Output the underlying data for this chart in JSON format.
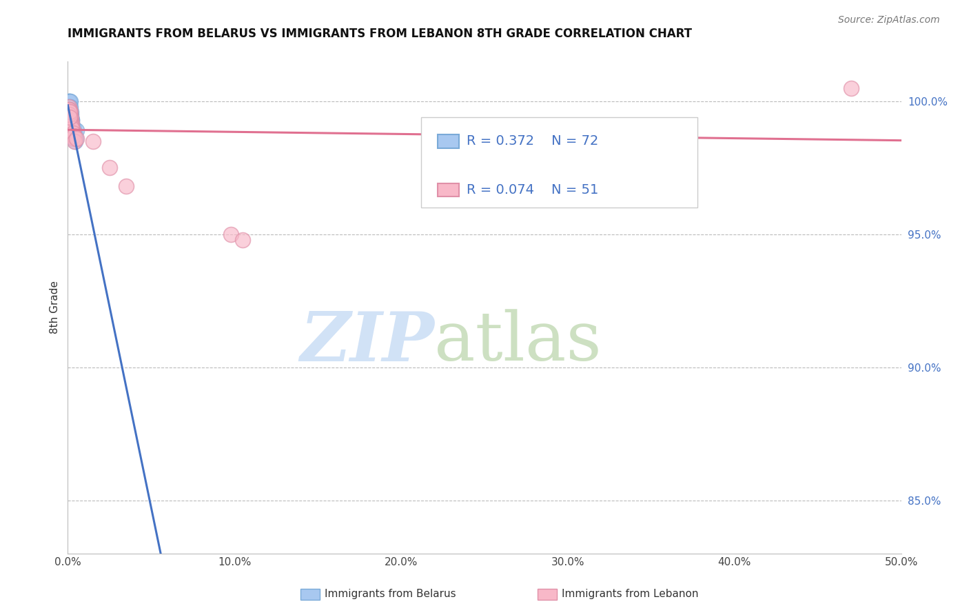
{
  "title": "IMMIGRANTS FROM BELARUS VS IMMIGRANTS FROM LEBANON 8TH GRADE CORRELATION CHART",
  "source": "Source: ZipAtlas.com",
  "ylabel": "8th Grade",
  "xlim": [
    0.0,
    50.0
  ],
  "ylim": [
    83.0,
    101.5
  ],
  "y_ticks": [
    85.0,
    90.0,
    95.0,
    100.0
  ],
  "y_tick_labels": [
    "85.0%",
    "90.0%",
    "95.0%",
    "100.0%"
  ],
  "x_ticks": [
    0.0,
    10.0,
    20.0,
    30.0,
    40.0,
    50.0
  ],
  "legend_r1": "R = 0.372",
  "legend_n1": "N = 72",
  "legend_r2": "R = 0.074",
  "legend_n2": "N = 51",
  "color_blue_fill": "#A8C8F0",
  "color_blue_edge": "#7AAAD8",
  "color_blue_line": "#4472C4",
  "color_pink_fill": "#F8B8C8",
  "color_pink_edge": "#E090A8",
  "color_pink_line": "#E07090",
  "color_text_blue": "#4472C4",
  "color_grid": "#BBBBBB",
  "watermark_zip_color": "#CCDFF5",
  "watermark_atlas_color": "#B8D4A8",
  "belarus_x": [
    0.05,
    0.08,
    0.1,
    0.12,
    0.15,
    0.1,
    0.08,
    0.12,
    0.15,
    0.18,
    0.2,
    0.22,
    0.18,
    0.15,
    0.25,
    0.2,
    0.12,
    0.08,
    0.15,
    0.1,
    0.18,
    0.22,
    0.25,
    0.2,
    0.15,
    0.1,
    0.12,
    0.08,
    0.18,
    0.22,
    0.3,
    0.28,
    0.25,
    0.32,
    0.35,
    0.3,
    0.28,
    0.25,
    0.22,
    0.2,
    0.4,
    0.38,
    0.35,
    0.42,
    0.45,
    0.4,
    0.38,
    0.35,
    0.5,
    0.48,
    0.05,
    0.08,
    0.1,
    0.12,
    0.15,
    0.18,
    0.2,
    0.22,
    0.25,
    0.28,
    0.1,
    0.12,
    0.15,
    0.08,
    0.2,
    0.18,
    0.22,
    0.25,
    0.3,
    0.35,
    0.4,
    0.45
  ],
  "belarus_y": [
    100.0,
    100.0,
    100.0,
    99.8,
    100.0,
    99.5,
    99.7,
    99.5,
    99.3,
    99.5,
    99.2,
    99.3,
    99.6,
    99.8,
    99.0,
    99.4,
    99.5,
    99.7,
    99.1,
    99.6,
    98.8,
    99.0,
    98.8,
    99.2,
    99.4,
    99.6,
    99.3,
    99.5,
    98.9,
    98.7,
    99.0,
    98.8,
    99.1,
    98.6,
    98.7,
    98.9,
    98.8,
    99.2,
    99.3,
    99.4,
    98.7,
    98.8,
    98.9,
    98.6,
    98.5,
    98.7,
    98.8,
    99.0,
    98.9,
    98.6,
    99.8,
    99.7,
    99.6,
    99.5,
    99.4,
    99.3,
    99.2,
    99.1,
    99.0,
    98.9,
    99.5,
    99.3,
    99.1,
    99.7,
    99.0,
    99.2,
    98.9,
    98.7,
    98.8,
    98.6,
    98.7,
    98.6
  ],
  "lebanon_x": [
    0.05,
    0.08,
    0.1,
    0.12,
    0.15,
    0.1,
    0.08,
    0.12,
    0.18,
    0.15,
    0.2,
    0.25,
    0.22,
    0.18,
    0.3,
    0.28,
    0.12,
    0.1,
    0.08,
    0.15,
    0.2,
    0.25,
    0.3,
    0.35,
    0.4,
    0.18,
    0.22,
    0.28,
    0.32,
    0.38,
    0.1,
    0.15,
    0.2,
    0.25,
    0.08,
    0.12,
    0.18,
    0.22,
    0.3,
    0.35,
    1.5,
    2.5,
    3.5,
    9.8,
    10.5,
    0.4,
    0.5,
    0.08,
    0.1,
    0.12,
    47.0
  ],
  "lebanon_y": [
    99.8,
    99.5,
    99.7,
    99.3,
    99.6,
    99.4,
    99.5,
    99.2,
    99.1,
    99.3,
    99.0,
    98.9,
    99.2,
    99.4,
    98.8,
    98.9,
    99.5,
    99.6,
    99.7,
    99.3,
    99.1,
    99.0,
    98.9,
    98.7,
    98.6,
    99.2,
    99.0,
    98.8,
    98.7,
    98.6,
    99.4,
    99.2,
    99.0,
    98.9,
    99.5,
    99.3,
    99.1,
    99.0,
    98.8,
    98.7,
    98.5,
    97.5,
    96.8,
    95.0,
    94.8,
    98.5,
    98.6,
    99.5,
    99.6,
    99.4,
    100.5
  ]
}
